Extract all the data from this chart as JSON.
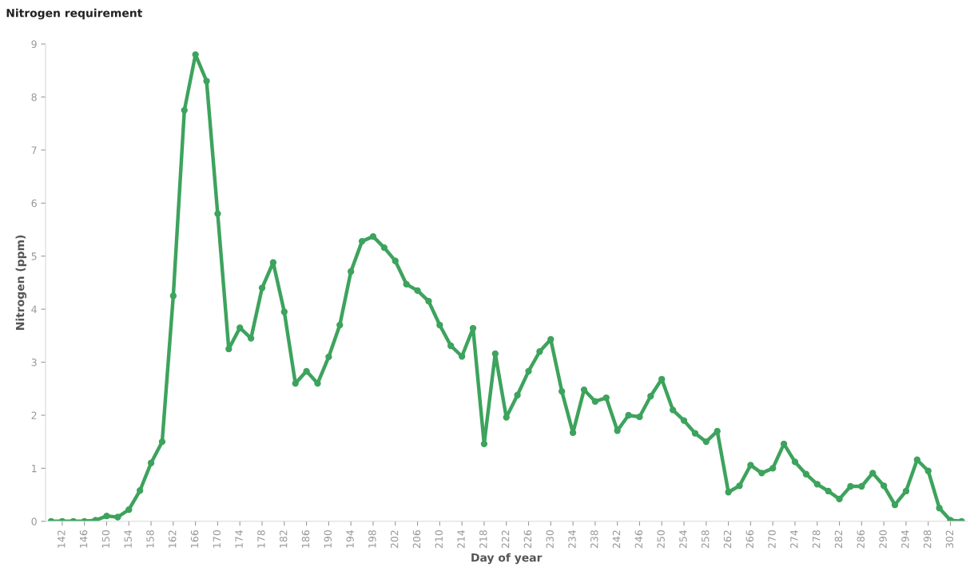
{
  "chart_data": {
    "type": "line",
    "title": "Nitrogen requirement",
    "xlabel": "Day of year",
    "ylabel": "Nitrogen (ppm)",
    "x": [
      140,
      142,
      144,
      146,
      148,
      150,
      152,
      154,
      156,
      158,
      160,
      162,
      164,
      166,
      168,
      170,
      172,
      174,
      176,
      178,
      180,
      182,
      184,
      186,
      188,
      190,
      192,
      194,
      196,
      198,
      200,
      202,
      204,
      206,
      208,
      210,
      212,
      214,
      216,
      218,
      220,
      222,
      224,
      226,
      228,
      230,
      232,
      234,
      236,
      238,
      240,
      242,
      244,
      246,
      248,
      250,
      252,
      254,
      256,
      258,
      260,
      262,
      264,
      266,
      268,
      270,
      272,
      274,
      276,
      278,
      280,
      282,
      284,
      286,
      288,
      290,
      292,
      294,
      296,
      298,
      300,
      302,
      304
    ],
    "series": [
      {
        "color": "#3da35d",
        "values": [
          0,
          0,
          0,
          0,
          0.02,
          0.1,
          0.08,
          0.22,
          0.58,
          1.1,
          1.5,
          4.25,
          7.75,
          8.8,
          8.3,
          5.8,
          3.25,
          3.65,
          3.45,
          4.4,
          4.88,
          3.95,
          2.6,
          2.83,
          2.6,
          3.1,
          3.7,
          4.71,
          5.28,
          5.37,
          5.16,
          4.91,
          4.47,
          4.35,
          4.15,
          3.7,
          3.31,
          3.11,
          3.64,
          1.46,
          3.16,
          1.96,
          2.38,
          2.83,
          3.2,
          3.43,
          2.45,
          1.67,
          2.48,
          2.26,
          2.33,
          1.71,
          2.0,
          1.97,
          2.36,
          2.68,
          2.1,
          1.9,
          1.66,
          1.5,
          1.7,
          0.55,
          0.67,
          1.06,
          0.91,
          1.0,
          1.46,
          1.12,
          0.89,
          0.7,
          0.57,
          0.42,
          0.66,
          0.66,
          0.91,
          0.67,
          0.31,
          0.57,
          1.16,
          0.95,
          0.25,
          0.02,
          0
        ]
      }
    ],
    "xlim": [
      139,
      305
    ],
    "xticks": [
      142,
      146,
      150,
      154,
      158,
      162,
      166,
      170,
      174,
      178,
      182,
      186,
      190,
      194,
      198,
      202,
      206,
      210,
      214,
      218,
      222,
      226,
      230,
      234,
      238,
      242,
      246,
      250,
      254,
      258,
      262,
      266,
      270,
      274,
      278,
      282,
      286,
      290,
      294,
      298,
      302
    ],
    "ylim": [
      0,
      9
    ],
    "yticks": [
      0,
      1,
      2,
      3,
      4,
      5,
      6,
      7,
      8,
      9
    ],
    "grid": false,
    "marker": "circle",
    "line_style": "solid"
  }
}
